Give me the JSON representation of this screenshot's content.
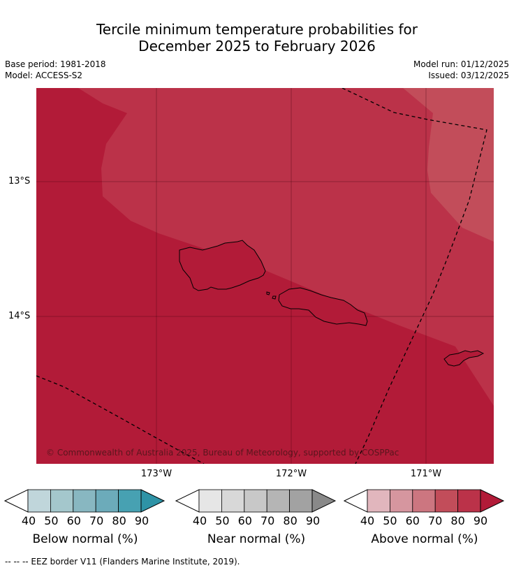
{
  "title": {
    "line1": "Tercile minimum temperature probabilities for",
    "line2": "December 2025 to February 2026"
  },
  "meta": {
    "base_period": "Base period: 1981-2018",
    "model": "Model: ACCESS-S2",
    "model_run": "Model run: 01/12/2025",
    "issued": "Issued: 03/12/2025"
  },
  "map": {
    "lat_labels": [
      "13°S",
      "14°S"
    ],
    "lon_labels": [
      "173°W",
      "172°W",
      "171°W"
    ],
    "copyright": "© Commonwealth of Australia 2025, Bureau of Meteorology, supported by COSPPac",
    "colors": {
      "above_80": "#bb3249",
      "above_90": "#b21b38",
      "above_70": "#c24d5a"
    }
  },
  "legend": {
    "below": {
      "label": "Below normal (%)",
      "ticks": [
        "40",
        "50",
        "60",
        "70",
        "80",
        "90"
      ],
      "colors": [
        "#c0d6db",
        "#a4c7cc",
        "#88b7c1",
        "#6cabba",
        "#47a1b2",
        "#2e93a6"
      ]
    },
    "near": {
      "label": "Near normal (%)",
      "ticks": [
        "40",
        "50",
        "60",
        "70",
        "80",
        "90"
      ],
      "colors": [
        "#e6e6e6",
        "#d8d8d8",
        "#c8c8c8",
        "#b5b5b5",
        "#a2a2a2",
        "#898989"
      ]
    },
    "above": {
      "label": "Above normal (%)",
      "ticks": [
        "40",
        "50",
        "60",
        "70",
        "80",
        "90"
      ],
      "colors": [
        "#e1b6bd",
        "#d6969f",
        "#cc7680",
        "#c24d5a",
        "#bb3249",
        "#b21b38"
      ]
    }
  },
  "footer": "--  --  -- EEZ border V11 (Flanders Marine Institute, 2019)."
}
